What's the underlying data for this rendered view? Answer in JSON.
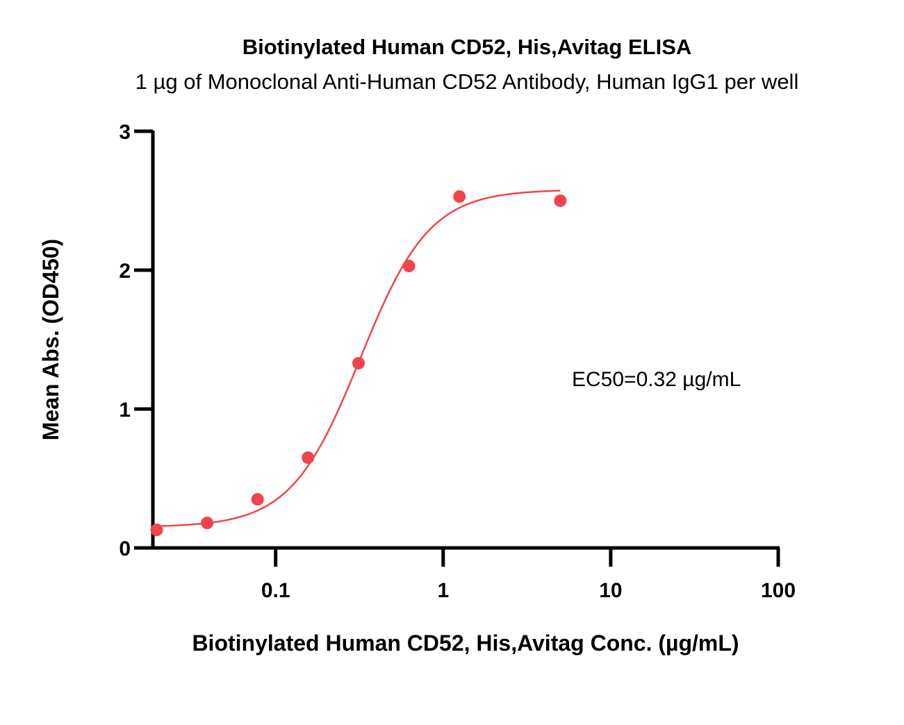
{
  "chart_data": {
    "type": "scatter",
    "title": "Biotinylated Human CD52, His,Avitag ELISA",
    "subtitle": "1 µg of Monoclonal Anti-Human CD52 Antibody, Human IgG1 per well",
    "xlabel": "Biotinylated Human CD52, His,Avitag Conc. (µg/mL)",
    "ylabel": "Mean Abs. (OD450)",
    "x_scale": "log",
    "xlim": [
      0.0185,
      100
    ],
    "ylim": [
      0,
      3
    ],
    "x_ticks": [
      0.1,
      1,
      10,
      100
    ],
    "x_tick_labels": [
      "0.1",
      "1",
      "10",
      "100"
    ],
    "y_ticks": [
      0,
      1,
      2,
      3
    ],
    "y_tick_labels": [
      "0",
      "1",
      "2",
      "3"
    ],
    "grid": false,
    "series": [
      {
        "color": "#f0454a",
        "x": [
          0.0195,
          0.039,
          0.078,
          0.156,
          0.3125,
          0.625,
          1.25,
          5
        ],
        "y": [
          0.13,
          0.18,
          0.35,
          0.65,
          1.33,
          2.03,
          2.53,
          2.5
        ],
        "fit": {
          "model": "4PL",
          "bottom": 0.15,
          "top": 2.58,
          "ec50": 0.32,
          "hill": 2.1,
          "x_range": [
            0.0195,
            5
          ]
        }
      }
    ],
    "annotations": [
      {
        "text": "EC50=0.32 µg/mL"
      }
    ]
  }
}
